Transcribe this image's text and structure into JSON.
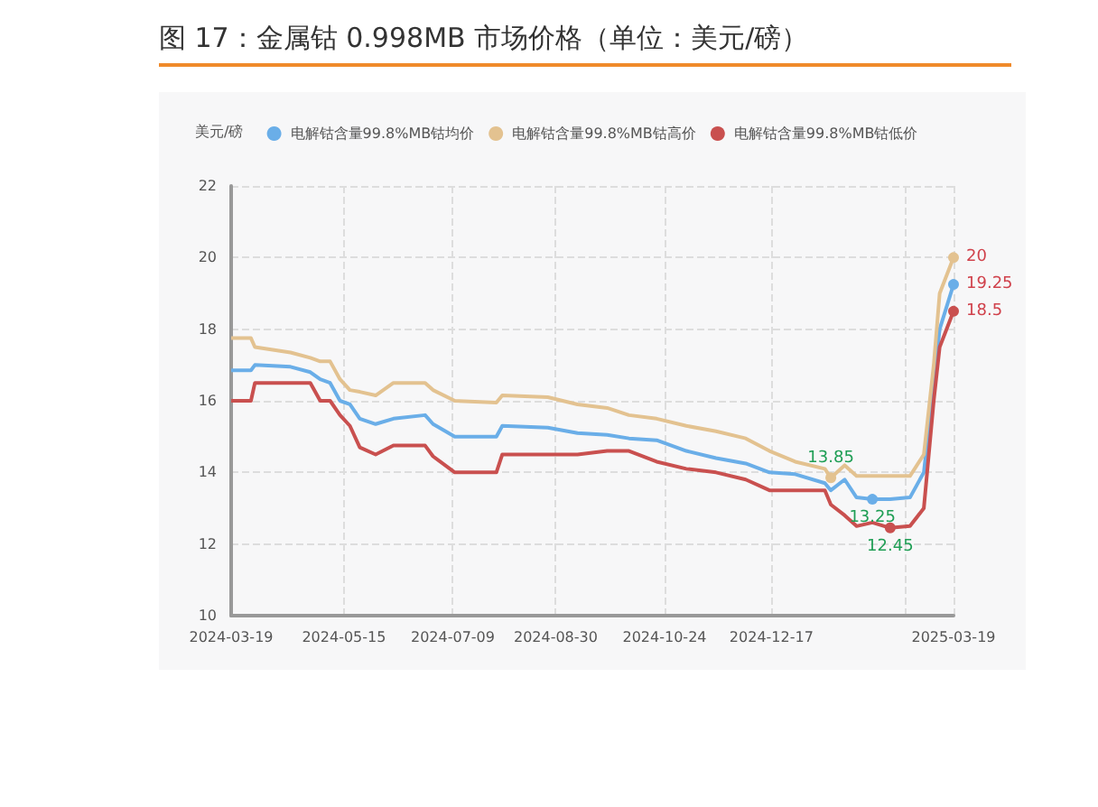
{
  "chart_data": {
    "type": "line",
    "title": "图 17：金属钴 0.998MB 市场价格（单位：美元/磅）",
    "ylabel": "美元/磅",
    "x": [
      "2024-03-19",
      "2024-03-29",
      "2024-03-31",
      "2024-04-18",
      "2024-04-28",
      "2024-05-03",
      "2024-05-08",
      "2024-05-13",
      "2024-05-18",
      "2024-05-23",
      "2024-05-31",
      "2024-06-09",
      "2024-06-25",
      "2024-06-29",
      "2024-07-10",
      "2024-07-31",
      "2024-08-03",
      "2024-08-26",
      "2024-09-10",
      "2024-09-25",
      "2024-10-06",
      "2024-10-20",
      "2024-11-04",
      "2024-11-19",
      "2024-12-04",
      "2024-12-16",
      "2024-12-29",
      "2025-01-13",
      "2025-01-16",
      "2025-01-23",
      "2025-01-29",
      "2025-02-06",
      "2025-02-15",
      "2025-02-25",
      "2025-03-04",
      "2025-03-09",
      "2025-03-12",
      "2025-03-19"
    ],
    "series": [
      {
        "name": "电解钴含量99.8%MB钴均价",
        "color": "#6aaee8",
        "values": [
          16.85,
          16.85,
          17.0,
          16.95,
          16.8,
          16.6,
          16.5,
          16.0,
          15.9,
          15.5,
          15.35,
          15.5,
          15.6,
          15.35,
          15.0,
          15.0,
          15.3,
          15.25,
          15.1,
          15.05,
          14.95,
          14.9,
          14.6,
          14.4,
          14.25,
          14.0,
          13.95,
          13.7,
          13.5,
          13.8,
          13.3,
          13.25,
          13.25,
          13.3,
          14.0,
          16.5,
          18.0,
          19.25
        ],
        "value_labels": [
          null,
          null,
          null,
          null,
          null,
          null,
          null,
          null,
          null,
          null,
          null,
          null,
          null,
          null,
          null,
          null,
          null,
          null,
          null,
          null,
          null,
          null,
          null,
          null,
          null,
          null,
          null,
          null,
          null,
          null,
          null,
          "13.25",
          null,
          null,
          null,
          null,
          null,
          "19.25"
        ]
      },
      {
        "name": "电解钴含量99.8%MB钴高价",
        "color": "#e3c290",
        "values": [
          17.75,
          17.75,
          17.5,
          17.35,
          17.2,
          17.1,
          17.1,
          16.6,
          16.3,
          16.25,
          16.15,
          16.5,
          16.5,
          16.3,
          16.0,
          15.95,
          16.15,
          16.1,
          15.9,
          15.8,
          15.6,
          15.5,
          15.3,
          15.15,
          14.95,
          14.6,
          14.3,
          14.1,
          13.85,
          14.2,
          13.9,
          13.9,
          13.9,
          13.9,
          14.5,
          17.0,
          19.0,
          20
        ],
        "value_labels": [
          null,
          null,
          null,
          null,
          null,
          null,
          null,
          null,
          null,
          null,
          null,
          null,
          null,
          null,
          null,
          null,
          null,
          null,
          null,
          null,
          null,
          null,
          null,
          null,
          null,
          null,
          null,
          null,
          "13.85",
          null,
          null,
          null,
          null,
          null,
          null,
          null,
          null,
          "20"
        ]
      },
      {
        "name": "电解钴含量99.8%MB钴低价",
        "color": "#c9504f",
        "values": [
          16.0,
          16.0,
          16.5,
          16.5,
          16.5,
          16.0,
          16.0,
          15.6,
          15.3,
          14.7,
          14.5,
          14.75,
          14.75,
          14.45,
          14.0,
          14.0,
          14.5,
          14.5,
          14.5,
          14.6,
          14.6,
          14.3,
          14.1,
          14.0,
          13.8,
          13.5,
          13.5,
          13.5,
          13.1,
          12.8,
          12.5,
          12.6,
          12.45,
          12.5,
          13.0,
          16.0,
          17.5,
          18.5
        ],
        "value_labels": [
          null,
          null,
          null,
          null,
          null,
          null,
          null,
          null,
          null,
          null,
          null,
          null,
          null,
          null,
          null,
          null,
          null,
          null,
          null,
          null,
          null,
          null,
          null,
          null,
          null,
          null,
          null,
          null,
          null,
          null,
          null,
          null,
          "12.45",
          null,
          null,
          null,
          null,
          "18.5"
        ]
      }
    ],
    "xlim": [
      "2024-03-19",
      "2025-03-19"
    ],
    "xticks": [
      {
        "value": "2024-03-19",
        "label": "2024-03-19"
      },
      {
        "value": "2024-05-15",
        "label": "2024-05-15"
      },
      {
        "value": "2024-07-09",
        "label": "2024-07-09"
      },
      {
        "value": "2024-08-30",
        "label": "2024-08-30"
      },
      {
        "value": "2024-10-24",
        "label": "2024-10-24"
      },
      {
        "value": "2024-12-17",
        "label": "2024-12-17"
      },
      {
        "value": "2025-02-23",
        "label": null
      },
      {
        "value": "2025-03-19",
        "label": "2025-03-19"
      }
    ],
    "ylim": [
      10,
      22
    ],
    "yticks": [
      10,
      12,
      14,
      16,
      18,
      20,
      22
    ],
    "grid": true,
    "legend": "top",
    "marker": "none",
    "line_style": "solid"
  }
}
